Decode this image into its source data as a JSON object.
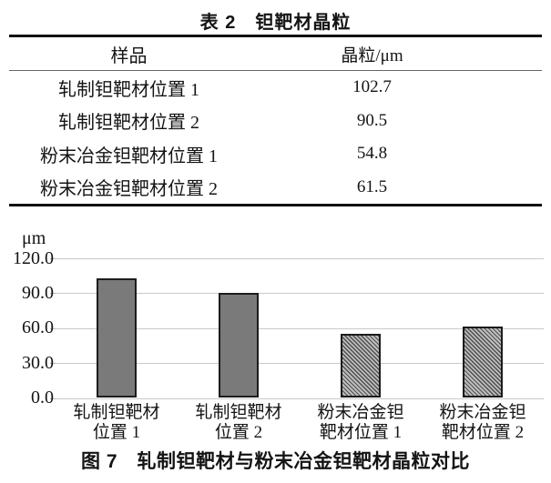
{
  "table": {
    "title": "表 2　钽靶材晶粒",
    "columns": {
      "sample": "样品",
      "grain": "晶粒/μm"
    },
    "rows": [
      {
        "sample": "轧制钽靶材位置 1",
        "value": "102.7"
      },
      {
        "sample": "轧制钽靶材位置 2",
        "value": "90.5"
      },
      {
        "sample": "粉末冶金钽靶材位置 1",
        "value": "54.8"
      },
      {
        "sample": "粉末冶金钽靶材位置 2",
        "value": "61.5"
      }
    ]
  },
  "chart_data": {
    "type": "bar",
    "title": "",
    "unit_label": "μm",
    "categories": [
      "轧制钽靶材位置 1",
      "轧制钽靶材位置 2",
      "粉末冶金钽靶材位置 1",
      "粉末冶金钽靶材位置 2"
    ],
    "category_lines": [
      [
        "轧制钽靶材",
        "位置 1"
      ],
      [
        "轧制钽靶材",
        "位置 2"
      ],
      [
        "粉末冶金钽",
        "靶材位置 1"
      ],
      [
        "粉末冶金钽",
        "靶材位置 2"
      ]
    ],
    "values": [
      102.7,
      90.5,
      54.8,
      61.5
    ],
    "bar_styles": [
      "solid",
      "solid",
      "hatched",
      "hatched"
    ],
    "ylim": [
      0,
      120
    ],
    "yticks": [
      0,
      30,
      60,
      90,
      120
    ],
    "ytick_labels": [
      "0.0",
      "30.0",
      "60.0",
      "90.0",
      "120.0"
    ],
    "grid": true,
    "legend": "none",
    "colors": {
      "solid_bar": "#7a7a7a",
      "hatch_dark": "#4f4f4f",
      "hatch_light": "#bdbdbd",
      "bar_border": "#1c1c1c",
      "gridline": "#c9c9c9",
      "text": "#141414"
    }
  },
  "figure_caption": "图 7　轧制钽靶材与粉末冶金钽靶材晶粒对比"
}
